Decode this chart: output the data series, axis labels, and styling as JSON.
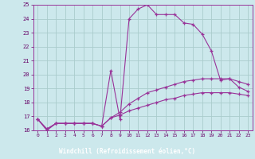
{
  "bg_color": "#cce8ec",
  "plot_bg_color": "#cce8ec",
  "grid_color": "#aacccc",
  "line_color": "#993399",
  "marker_color": "#993399",
  "xlabel": "Windchill (Refroidissement éolien,°C)",
  "xlabel_bg": "#660066",
  "xlabel_fg": "#ffffff",
  "ylabel_color": "#660066",
  "tick_color": "#660066",
  "xlim": [
    -0.5,
    23.5
  ],
  "ylim": [
    16,
    25
  ],
  "yticks": [
    16,
    17,
    18,
    19,
    20,
    21,
    22,
    23,
    24,
    25
  ],
  "xticks": [
    0,
    1,
    2,
    3,
    4,
    5,
    6,
    7,
    8,
    9,
    10,
    11,
    12,
    13,
    14,
    15,
    16,
    17,
    18,
    19,
    20,
    21,
    22,
    23
  ],
  "curve1_x": [
    0,
    1,
    2,
    3,
    4,
    5,
    6,
    7,
    8,
    9,
    10,
    11,
    12,
    13,
    14,
    15,
    16,
    17,
    18,
    19,
    20,
    21,
    22,
    23
  ],
  "curve1_y": [
    16.8,
    16.0,
    16.5,
    16.5,
    16.5,
    16.5,
    16.5,
    16.3,
    20.3,
    16.8,
    24.0,
    24.7,
    25.0,
    24.3,
    24.3,
    24.3,
    23.7,
    23.6,
    22.9,
    21.7,
    19.6,
    19.7,
    19.1,
    18.8
  ],
  "curve2_x": [
    0,
    1,
    2,
    3,
    4,
    5,
    6,
    7,
    8,
    9,
    10,
    11,
    12,
    13,
    14,
    15,
    16,
    17,
    18,
    19,
    20,
    21,
    22,
    23
  ],
  "curve2_y": [
    16.8,
    16.1,
    16.5,
    16.5,
    16.5,
    16.5,
    16.5,
    16.3,
    16.9,
    17.3,
    17.9,
    18.3,
    18.7,
    18.9,
    19.1,
    19.3,
    19.5,
    19.6,
    19.7,
    19.7,
    19.7,
    19.7,
    19.5,
    19.3
  ],
  "curve3_x": [
    0,
    1,
    2,
    3,
    4,
    5,
    6,
    7,
    8,
    9,
    10,
    11,
    12,
    13,
    14,
    15,
    16,
    17,
    18,
    19,
    20,
    21,
    22,
    23
  ],
  "curve3_y": [
    16.8,
    16.1,
    16.5,
    16.5,
    16.5,
    16.5,
    16.5,
    16.3,
    16.9,
    17.1,
    17.4,
    17.6,
    17.8,
    18.0,
    18.2,
    18.3,
    18.5,
    18.6,
    18.7,
    18.7,
    18.7,
    18.7,
    18.6,
    18.5
  ]
}
